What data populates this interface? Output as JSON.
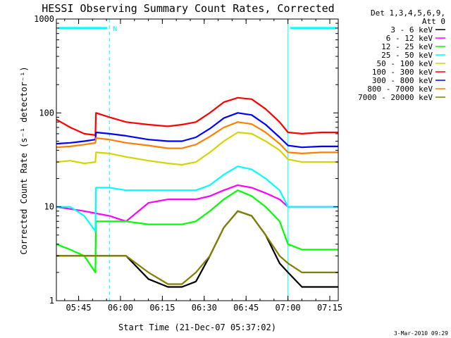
{
  "chart_data": {
    "type": "line",
    "title": "HESSI Observing Summary Count Rates, Corrected",
    "xlabel": "Start Time (21-Dec-07 05:37:02)",
    "ylabel": "Corrected Count Rate (s⁻¹ detector⁻¹)",
    "yscale": "log",
    "ylim": [
      1,
      1000
    ],
    "xlim_minutes": [
      0,
      101
    ],
    "xticks": [
      {
        "minutes": 7.97,
        "label": "05:45"
      },
      {
        "minutes": 22.97,
        "label": "06:00"
      },
      {
        "minutes": 37.97,
        "label": "06:15"
      },
      {
        "minutes": 52.97,
        "label": "06:30"
      },
      {
        "minutes": 67.97,
        "label": "06:45"
      },
      {
        "minutes": 82.97,
        "label": "07:00"
      },
      {
        "minutes": 97.97,
        "label": "07:15"
      }
    ],
    "yticks": [
      {
        "value": 1,
        "label": "1"
      },
      {
        "value": 10,
        "label": "10"
      },
      {
        "value": 100,
        "label": "100"
      },
      {
        "value": 1000,
        "label": "1000"
      }
    ],
    "legend_header": [
      "Det 1,3,4,5,6,9,",
      "Att 0"
    ],
    "legend_position": "right",
    "night_marker_label": "N",
    "night_intervals_minutes": [
      [
        0,
        19
      ],
      [
        83,
        101
      ]
    ],
    "annotation_level_value": 800,
    "series": [
      {
        "name": "3 - 6 keV",
        "color": "#000000",
        "x": [
          0,
          10,
          19,
          25,
          33,
          40,
          45,
          50,
          55,
          60,
          65,
          70,
          75,
          80,
          83,
          88,
          95,
          101
        ],
        "values": [
          3,
          3,
          3,
          3,
          1.7,
          1.4,
          1.4,
          1.6,
          3,
          6,
          9,
          8,
          5,
          2.5,
          2,
          1.4,
          1.4,
          1.4
        ]
      },
      {
        "name": "6 - 12 keV",
        "color": "#ff00ff",
        "x": [
          0,
          10,
          19,
          25,
          33,
          40,
          45,
          50,
          55,
          60,
          65,
          70,
          75,
          80,
          83,
          88,
          95,
          101
        ],
        "values": [
          10,
          9,
          8,
          7,
          11,
          12,
          12,
          12,
          13,
          15,
          17,
          16,
          14,
          12,
          10,
          10,
          10,
          10
        ]
      },
      {
        "name": "12 - 25 keV",
        "color": "#00ff00",
        "x": [
          0,
          5,
          10,
          14,
          14.2,
          19,
          25,
          33,
          40,
          45,
          50,
          55,
          60,
          65,
          70,
          75,
          80,
          83,
          88,
          95,
          101
        ],
        "values": [
          4,
          3.5,
          3,
          2,
          7,
          7,
          7,
          6.5,
          6.5,
          6.5,
          7,
          9,
          12,
          15,
          13,
          10,
          7,
          4,
          3.5,
          3.5,
          3.5
        ]
      },
      {
        "name": "25 - 50 keV",
        "color": "#00ffff",
        "x": [
          0,
          5,
          10,
          14,
          14.2,
          19,
          25,
          33,
          40,
          45,
          50,
          55,
          60,
          65,
          70,
          75,
          80,
          83,
          88,
          95,
          101
        ],
        "values": [
          10,
          10,
          8,
          5.5,
          16,
          16,
          15,
          15,
          15,
          15,
          15,
          17,
          22,
          27,
          25,
          20,
          15,
          10,
          10,
          10,
          10
        ]
      },
      {
        "name": "50 - 100 keV",
        "color": "#d4d400",
        "x": [
          0,
          5,
          10,
          14,
          14.2,
          19,
          25,
          33,
          40,
          45,
          50,
          55,
          60,
          65,
          70,
          75,
          80,
          83,
          88,
          95,
          101
        ],
        "values": [
          30,
          31,
          29,
          30,
          38,
          37,
          34,
          31,
          29,
          28,
          30,
          38,
          50,
          62,
          60,
          50,
          40,
          32,
          30,
          30,
          30
        ]
      },
      {
        "name": "100 - 300 keV",
        "color": "#ff0000",
        "x": [
          0,
          5,
          10,
          14,
          14.2,
          19,
          25,
          33,
          40,
          45,
          50,
          55,
          60,
          65,
          70,
          75,
          80,
          83,
          88,
          95,
          101
        ],
        "values": [
          85,
          70,
          60,
          58,
          100,
          90,
          80,
          75,
          72,
          75,
          80,
          100,
          130,
          145,
          140,
          110,
          80,
          62,
          60,
          62,
          62
        ]
      },
      {
        "name": "300 - 800 keV",
        "color": "#0000ff",
        "x": [
          0,
          5,
          10,
          14,
          14.2,
          19,
          25,
          33,
          40,
          45,
          50,
          55,
          60,
          65,
          70,
          75,
          80,
          83,
          88,
          95,
          101
        ],
        "values": [
          47,
          48,
          50,
          52,
          62,
          60,
          57,
          52,
          50,
          50,
          55,
          68,
          88,
          100,
          95,
          75,
          55,
          45,
          43,
          44,
          44
        ]
      },
      {
        "name": "800 - 7000 keV",
        "color": "#ff8000",
        "x": [
          0,
          5,
          10,
          14,
          14.2,
          19,
          25,
          33,
          40,
          45,
          50,
          55,
          60,
          65,
          70,
          75,
          80,
          83,
          88,
          95,
          101
        ],
        "values": [
          43,
          44,
          46,
          48,
          54,
          52,
          48,
          45,
          42,
          42,
          46,
          56,
          70,
          80,
          76,
          62,
          47,
          38,
          37,
          38,
          38
        ]
      },
      {
        "name": "7000 - 20000 keV",
        "color": "#808000",
        "x": [
          0,
          10,
          19,
          25,
          33,
          40,
          45,
          50,
          55,
          60,
          65,
          70,
          75,
          80,
          83,
          88,
          95,
          101
        ],
        "values": [
          3,
          3,
          3,
          3,
          2,
          1.5,
          1.5,
          2,
          3,
          6,
          9,
          8,
          5,
          3,
          2.5,
          2,
          2,
          2
        ]
      }
    ],
    "footer_date": "3-Mar-2010 09:29"
  }
}
